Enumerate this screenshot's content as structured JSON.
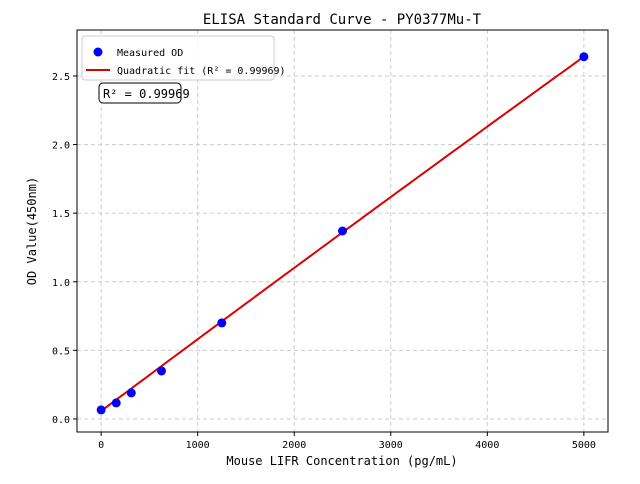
{
  "chart_data": {
    "type": "scatter",
    "title": "ELISA Standard Curve - PY0377Mu-T",
    "xlabel": "Mouse LIFR Concentration (pg/mL)",
    "ylabel": "OD Value(450nm)",
    "xlim": [
      -250,
      5250
    ],
    "ylim": [
      -0.095,
      2.835
    ],
    "xticks": [
      0,
      1000,
      2000,
      3000,
      4000,
      5000
    ],
    "yticks": [
      0.0,
      0.5,
      1.0,
      1.5,
      2.0,
      2.5
    ],
    "xtick_labels": [
      "0",
      "1000",
      "2000",
      "3000",
      "4000",
      "5000"
    ],
    "ytick_labels": [
      "0.0",
      "0.5",
      "1.0",
      "1.5",
      "2.0",
      "2.5"
    ],
    "grid": true,
    "legend_placement": "top-left",
    "series": [
      {
        "name": "Measured OD",
        "kind": "scatter",
        "color": "#0000ff",
        "x": [
          0,
          156.25,
          312.5,
          625,
          1250,
          2500,
          5000
        ],
        "y": [
          0.066,
          0.117,
          0.19,
          0.35,
          0.7,
          1.37,
          2.64
        ]
      },
      {
        "name": "Quadratic fit (R² = 0.99969)",
        "kind": "line",
        "color": "#dd0000",
        "coefficients": {
          "a": -1.7e-09,
          "b": 0.000525,
          "c": 0.058
        }
      }
    ],
    "annotation": "R² = 0.99969"
  }
}
